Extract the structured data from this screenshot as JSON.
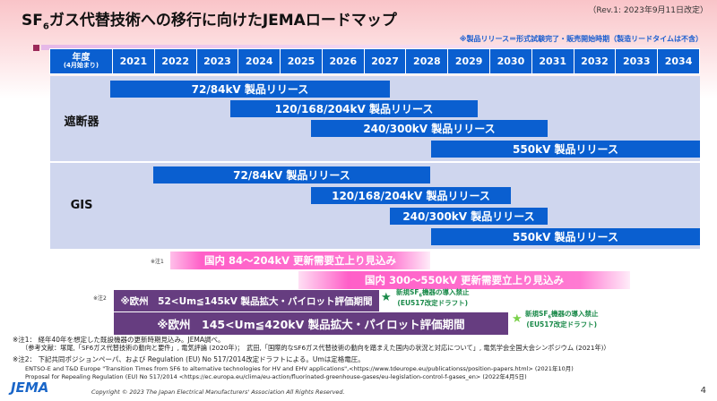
{
  "header": {
    "title_pre": "SF",
    "title_sub": "6",
    "title_post": "ガス代替技術への移行に向けたJEMAロードマップ",
    "revision": "（Rev.1: 2023年9月11日改定）",
    "note": "※製品リリース＝形式試験完了・販売開始時期（製造リードタイムは不含）"
  },
  "table": {
    "label_col": "年度",
    "label_sub": "(4月始まり)",
    "years": [
      "2021",
      "2022",
      "2023",
      "2024",
      "2025",
      "2026",
      "2027",
      "2028",
      "2029",
      "2030",
      "2031",
      "2032",
      "2033",
      "2034"
    ]
  },
  "rows": [
    {
      "label": "遮断器",
      "bars": [
        {
          "label": "72/84kV 製品リリース"
        },
        {
          "label": "120/168/204kV 製品リリース"
        },
        {
          "label": "240/300kV 製品リリース"
        },
        {
          "label": "550kV 製品リリース"
        }
      ]
    },
    {
      "label": "GIS",
      "bars": [
        {
          "label": "72/84kV 製品リリース"
        },
        {
          "label": "120/168/204kV 製品リリース"
        },
        {
          "label": "240/300kV 製品リリース"
        },
        {
          "label": "550kV 製品リリース"
        }
      ]
    }
  ],
  "demand": {
    "note_mark": "※注1",
    "items": [
      "国内 84～204kV 更新需要立上り見込み",
      "国内 300～550kV 更新需要立上り見込み"
    ]
  },
  "europe": {
    "note_mark": "※注2",
    "items": [
      "※欧州　52<Um≦145kV 製品拡大・パイロット評価期間",
      "※欧州　145<Um≦420kV 製品拡大・パイロット評価期間"
    ],
    "ban_pre": "新規SF",
    "ban_sub": "6",
    "ban_post": "機器の導入禁止",
    "ban_line2": "(EU517改定ドラフト)",
    "star_colors": [
      "#1b8a4a",
      "#7ad14a"
    ]
  },
  "footnotes": {
    "n1": "※注1： 経年40年を想定した既設機器の更新時期見込み。JEMA調べ。",
    "n1_ref": "（参考文献：塚尾,「SF6ガス代替技術の動向と要件」, 電気評論 (2020年)；　武田,「国際的なSF6ガス代替技術の動向を踏まえた国内の状況と対応について」, 電気学会全国大会シンポジウム (2021年)）",
    "n2": "※注2： 下記共同ポジションペーパ、および Regulation (EU) No 517/2014改定ドラフトによる。Umは定格電圧。",
    "n2_ref1": "ENTSO-E and T&D Europe \"Transition Times from SF6 to alternative technologies for HV and EHV applications\",<https://www.tdeurope.eu/publicationss/position-papers.html> (2021年10月)",
    "n2_ref2": "Proposal for Repealing Regulation (EU) No 517/2014 <https://ec.europa.eu/clima/eu-action/fluorinated-greenhouse-gases/eu-legislation-control-f-gases_en> (2022年4月5日)"
  },
  "footer": {
    "logo": "JEMA",
    "copyright": "Copyright © 2023 The Japan Electrical Manufacturers' Association All Rights Reserved.",
    "page": "4"
  },
  "colors": {
    "bar": "#0a5fd0",
    "purple": "#663d80",
    "pink": "#ff5fc8",
    "row_bg": "#cfd6ee"
  }
}
